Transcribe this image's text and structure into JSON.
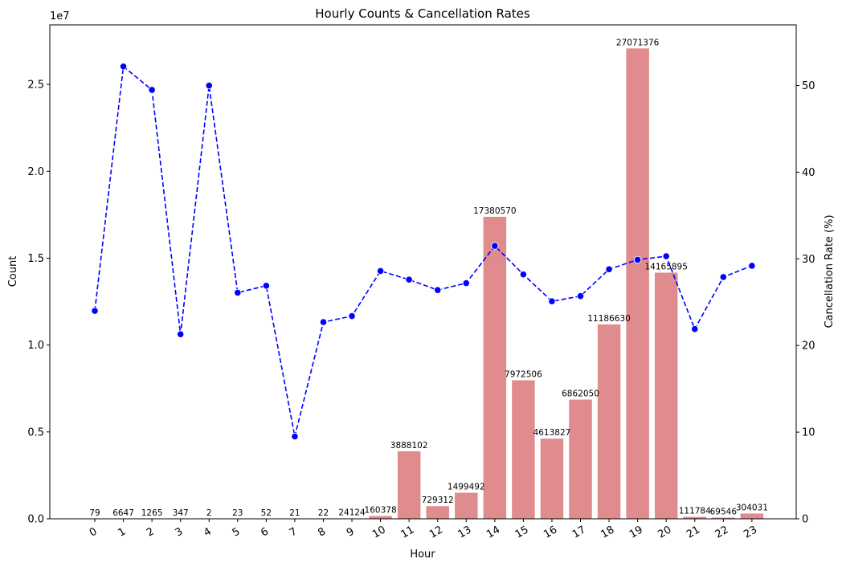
{
  "chart_data": {
    "type": "bar+line",
    "title": "Hourly Counts & Cancellation Rates",
    "xlabel": "Hour",
    "ylabel_left": "Count",
    "ylabel_right": "Cancellation Rate (%)",
    "left_axis_exponent_label": "1e7",
    "categories": [
      "0",
      "1",
      "2",
      "3",
      "4",
      "5",
      "6",
      "7",
      "8",
      "9",
      "10",
      "11",
      "12",
      "13",
      "14",
      "15",
      "16",
      "17",
      "18",
      "19",
      "20",
      "21",
      "22",
      "23"
    ],
    "counts": [
      79,
      6647,
      1265,
      347,
      2,
      23,
      52,
      21,
      22,
      24124,
      160378,
      3888102,
      729312,
      1499492,
      17380570,
      7972506,
      4613827,
      6862050,
      11186630,
      27071376,
      14165895,
      111784,
      69546,
      304031
    ],
    "count_labels": [
      "79",
      "6647",
      "1265",
      "347",
      "2",
      "23",
      "52",
      "21",
      "22",
      "24124",
      "160378",
      "3888102",
      "729312",
      "1499492",
      "17380570",
      "7972506",
      "4613827",
      "6862050",
      "11186630",
      "27071376",
      "14165895",
      "111784",
      "69546",
      "304031"
    ],
    "cancellation_rate": [
      24.0,
      52.2,
      49.5,
      21.3,
      50.0,
      26.1,
      26.9,
      9.5,
      22.7,
      23.4,
      28.6,
      27.6,
      26.4,
      27.2,
      31.5,
      28.2,
      25.1,
      25.7,
      28.8,
      29.9,
      30.3,
      21.9,
      27.9,
      29.2
    ],
    "left_ticks": [
      0,
      5000000,
      10000000,
      15000000,
      20000000,
      25000000
    ],
    "left_tick_labels": [
      "0.0",
      "0.5",
      "1.0",
      "1.5",
      "2.0",
      "2.5"
    ],
    "ylim_left": [
      0,
      28425000
    ],
    "right_ticks": [
      0,
      10,
      20,
      30,
      40,
      50
    ],
    "right_tick_labels": [
      "0",
      "10",
      "20",
      "30",
      "40",
      "50"
    ],
    "ylim_right": [
      0,
      57
    ],
    "bar_color": "#e08c8e",
    "line_color": "#0000ff",
    "line_style": "dashed",
    "marker": "circle",
    "grid": false,
    "legend": "none"
  }
}
